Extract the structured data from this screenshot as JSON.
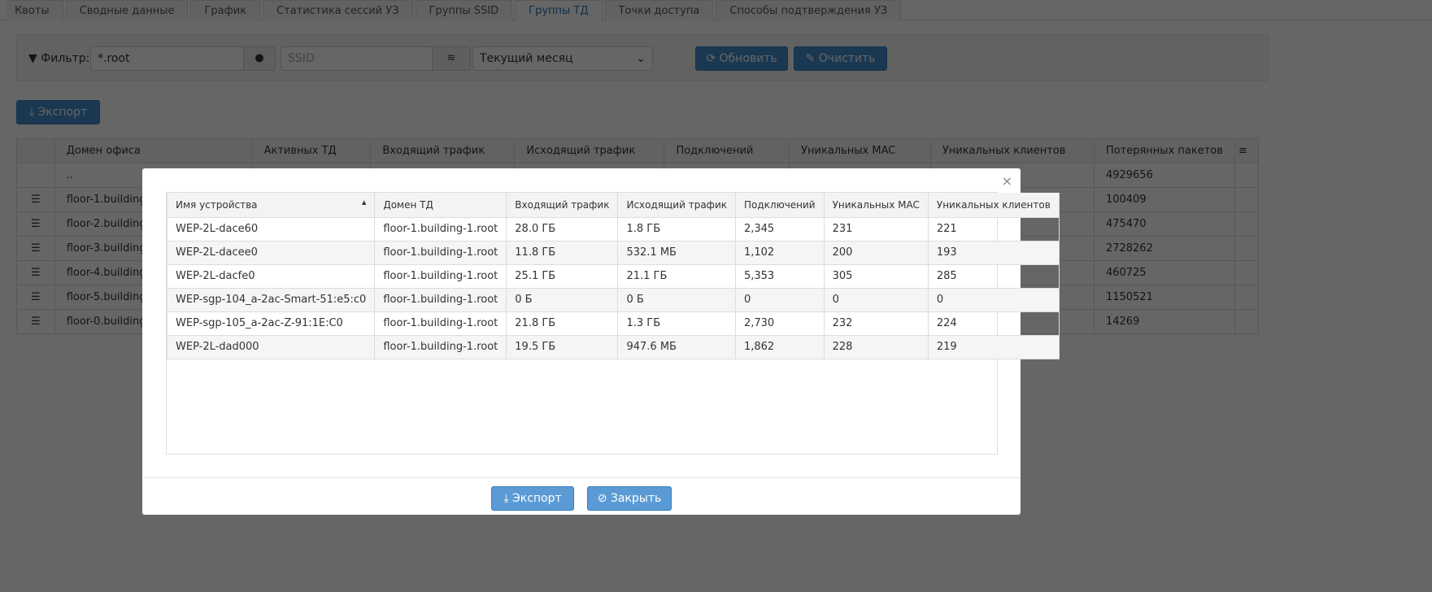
{
  "tabs": [
    "Квоты",
    "Сводные данные",
    "График",
    "Статистика сессий УЗ",
    "Группы SSID",
    "Группы ТД",
    "Точки доступа",
    "Способы подтверждения УЗ"
  ],
  "active_tab": "Группы ТД",
  "filter": {
    "label": "Фильтр:",
    "domain_value": "*.root",
    "ssid_placeholder": "SSID",
    "period": "Текущий месяц",
    "refresh": "Обновить",
    "clear": "Очистить"
  },
  "export_label": "Экспорт",
  "main_table": {
    "headers": [
      "Домен офиса",
      "Активных ТД",
      "Входящий трафик",
      "Исходящий трафик",
      "Подключений",
      "Уникальных MAC",
      "Уникальных клиентов",
      "Потерянных пакетов"
    ],
    "rows": [
      {
        "domain": "..",
        "lost": "4929656"
      },
      {
        "domain": "floor-1.building",
        "lost": "100409"
      },
      {
        "domain": "floor-2.building",
        "lost": "475470"
      },
      {
        "domain": "floor-3.building",
        "lost": "2728262"
      },
      {
        "domain": "floor-4.building",
        "lost": "460725"
      },
      {
        "domain": "floor-5.building",
        "lost": "1150521"
      },
      {
        "domain": "floor-0.building",
        "lost": "14269"
      }
    ]
  },
  "modal": {
    "close": "×",
    "headers": [
      "Имя устройства",
      "Домен ТД",
      "Входящий трафик",
      "Исходящий трафик",
      "Подключений",
      "Уникальных MAC",
      "Уникальных клиентов"
    ],
    "rows": [
      [
        "WEP-2L-dace60",
        "floor-1.building-1.root",
        "28.0 ГБ",
        "1.8 ГБ",
        "2,345",
        "231",
        "221"
      ],
      [
        "WEP-2L-dacee0",
        "floor-1.building-1.root",
        "11.8 ГБ",
        "532.1 МБ",
        "1,102",
        "200",
        "193"
      ],
      [
        "WEP-2L-dacfe0",
        "floor-1.building-1.root",
        "25.1 ГБ",
        "21.1 ГБ",
        "5,353",
        "305",
        "285"
      ],
      [
        "WEP-sgp-104_a-2ac-Smart-51:e5:c0",
        "floor-1.building-1.root",
        "0 Б",
        "0 Б",
        "0",
        "0",
        "0"
      ],
      [
        "WEP-sgp-105_a-2ac-Z-91:1E:C0",
        "floor-1.building-1.root",
        "21.8 ГБ",
        "1.3 ГБ",
        "2,730",
        "232",
        "224"
      ],
      [
        "WEP-2L-dad000",
        "floor-1.building-1.root",
        "19.5 ГБ",
        "947.6 МБ",
        "1,862",
        "228",
        "219"
      ]
    ],
    "export": "Экспорт",
    "close_btn": "Закрыть"
  }
}
